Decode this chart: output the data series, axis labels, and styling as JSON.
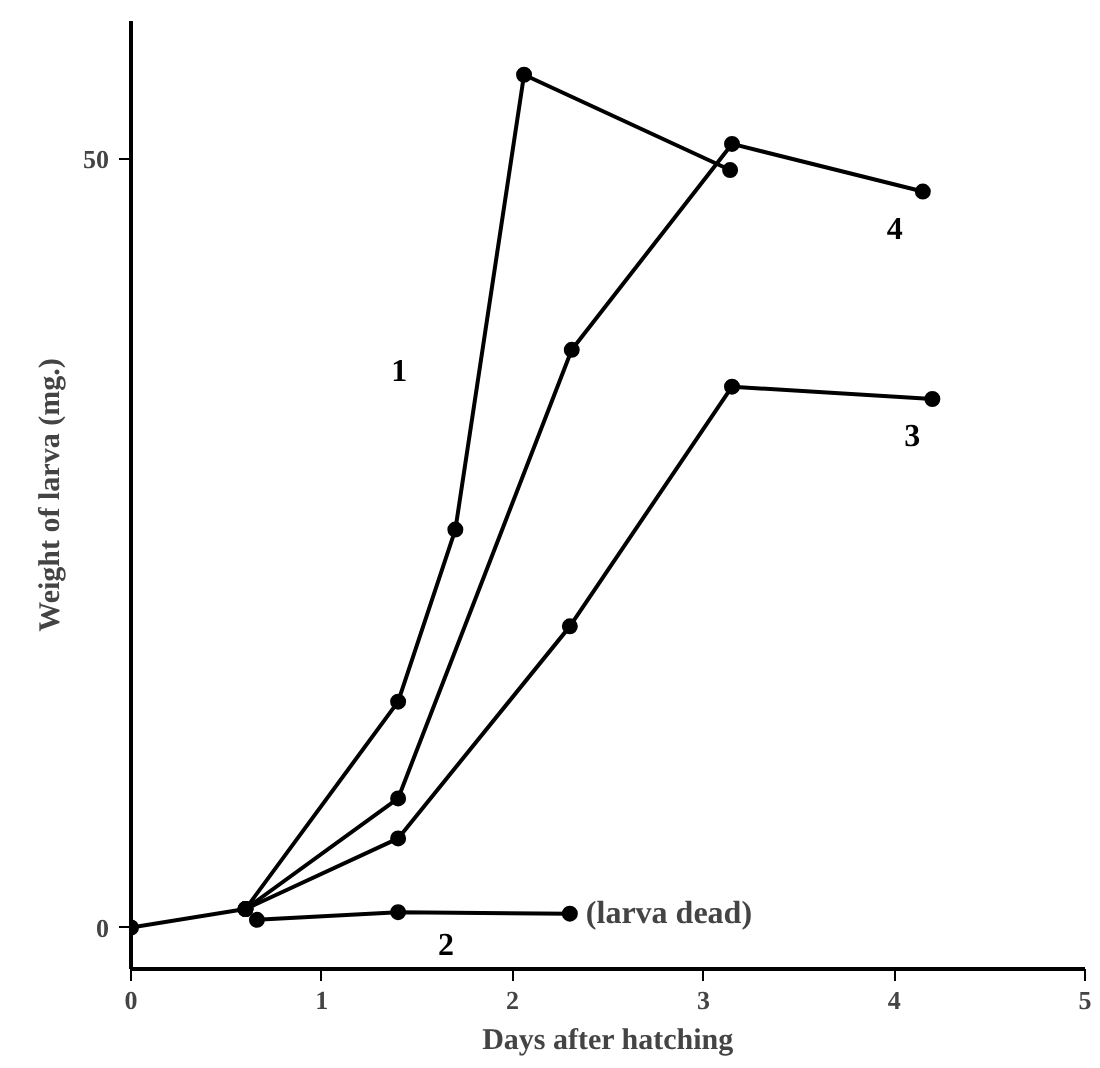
{
  "chart_data": {
    "type": "line",
    "xlabel": "Days after hatching",
    "ylabel": "Weight of larva (mg.)",
    "xlim": [
      0,
      5
    ],
    "ylim": [
      -2.7,
      59
    ],
    "xticks": [
      0,
      1,
      2,
      3,
      4,
      5
    ],
    "yticks": [
      0,
      50
    ],
    "grid": false,
    "marker": "circle",
    "line_style": "solid",
    "series": [
      {
        "name": "1",
        "color": "#000000",
        "x": [
          0,
          0.6,
          1.4,
          1.7,
          2.06,
          3.14
        ],
        "values": [
          0,
          1.2,
          14.7,
          25.9,
          55.5,
          49.3
        ]
      },
      {
        "name": "2",
        "color": "#000000",
        "x": [
          0.66,
          1.4,
          2.3
        ],
        "values": [
          0.5,
          1.0,
          0.9
        ]
      },
      {
        "name": "3",
        "color": "#000000",
        "x": [
          0.6,
          1.4,
          2.3,
          3.15,
          4.2
        ],
        "values": [
          1.2,
          5.8,
          19.6,
          35.2,
          34.4
        ]
      },
      {
        "name": "4",
        "color": "#000000",
        "x": [
          0.6,
          1.4,
          2.31,
          3.15,
          4.15
        ],
        "values": [
          1.2,
          8.4,
          37.6,
          51.0,
          47.9
        ]
      }
    ],
    "annotations": [
      {
        "text": "(larva dead)",
        "x": 2.3,
        "y": 0.9
      }
    ]
  }
}
